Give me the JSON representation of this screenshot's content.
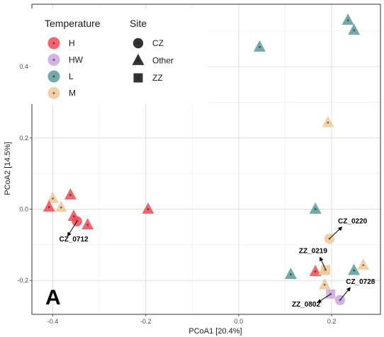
{
  "chart_data": {
    "type": "scatter",
    "panel_label": "A",
    "xlabel": "PCoA1 [20.4%]",
    "ylabel": "PCoA2 [14.5%]",
    "xlim": [
      -0.445,
      0.305
    ],
    "ylim": [
      -0.295,
      0.575
    ],
    "x_ticks": [
      -0.4,
      -0.2,
      0.0,
      0.2
    ],
    "x_tick_labels": [
      "-0.4",
      "-0.2",
      "0.0",
      "0.2"
    ],
    "y_ticks": [
      -0.2,
      0.0,
      0.2,
      0.4
    ],
    "y_tick_labels": [
      "-0.2",
      "0.0",
      "0.2",
      "0.4"
    ],
    "grid": true,
    "legend_placement": "top-left",
    "colors": {
      "H": "#f04a55",
      "HW": "#cba6df",
      "L": "#5c9a9b",
      "M": "#f0c898"
    },
    "legends": {
      "temperature": {
        "title": "Temperature",
        "entries": [
          "H",
          "HW",
          "L",
          "M"
        ]
      },
      "site": {
        "title": "Site",
        "entries": [
          "CZ",
          "Other",
          "ZZ"
        ]
      }
    },
    "points": [
      {
        "x": 0.235,
        "y": 0.53,
        "temp": "L",
        "site": "Other"
      },
      {
        "x": 0.248,
        "y": 0.502,
        "temp": "L",
        "site": "Other"
      },
      {
        "x": 0.045,
        "y": 0.455,
        "temp": "L",
        "site": "Other"
      },
      {
        "x": 0.192,
        "y": 0.243,
        "temp": "M",
        "site": "Other"
      },
      {
        "x": -0.4,
        "y": 0.03,
        "temp": "M",
        "site": "Other"
      },
      {
        "x": -0.382,
        "y": 0.005,
        "temp": "M",
        "site": "Other"
      },
      {
        "x": -0.362,
        "y": 0.04,
        "temp": "H",
        "site": "Other"
      },
      {
        "x": -0.408,
        "y": 0.006,
        "temp": "H",
        "site": "Other"
      },
      {
        "x": -0.355,
        "y": -0.02,
        "temp": "H",
        "site": "Other"
      },
      {
        "x": -0.348,
        "y": -0.034,
        "temp": "H",
        "site": "CZ"
      },
      {
        "x": -0.325,
        "y": -0.044,
        "temp": "H",
        "site": "Other"
      },
      {
        "x": -0.195,
        "y": 0.0,
        "temp": "H",
        "site": "Other"
      },
      {
        "x": 0.165,
        "y": 0.0,
        "temp": "L",
        "site": "Other"
      },
      {
        "x": 0.195,
        "y": -0.083,
        "temp": "M",
        "site": "CZ"
      },
      {
        "x": 0.112,
        "y": -0.183,
        "temp": "L",
        "site": "Other"
      },
      {
        "x": 0.165,
        "y": -0.175,
        "temp": "H",
        "site": "Other"
      },
      {
        "x": 0.183,
        "y": -0.172,
        "temp": "M",
        "site": "Other"
      },
      {
        "x": 0.187,
        "y": -0.17,
        "temp": "M",
        "site": "ZZ"
      },
      {
        "x": 0.248,
        "y": -0.172,
        "temp": "L",
        "site": "Other"
      },
      {
        "x": 0.268,
        "y": -0.157,
        "temp": "M",
        "site": "Other"
      },
      {
        "x": 0.185,
        "y": -0.212,
        "temp": "M",
        "site": "Other"
      },
      {
        "x": 0.198,
        "y": -0.238,
        "temp": "HW",
        "site": "ZZ"
      },
      {
        "x": 0.218,
        "y": -0.255,
        "temp": "HW",
        "site": "CZ"
      }
    ],
    "annotations": [
      {
        "text": "CZ_0712",
        "x": -0.355,
        "y": -0.09,
        "from": [
          -0.348,
          -0.034
        ],
        "to": [
          -0.368,
          -0.075
        ]
      },
      {
        "text": "CZ_0220",
        "x": 0.245,
        "y": -0.04,
        "from": [
          0.195,
          -0.083
        ],
        "to": [
          0.222,
          -0.05
        ]
      },
      {
        "text": "ZZ_0219",
        "x": 0.16,
        "y": -0.123,
        "from": [
          0.187,
          -0.17
        ],
        "to": [
          0.175,
          -0.135
        ]
      },
      {
        "text": "CZ_0728",
        "x": 0.262,
        "y": -0.21,
        "from": [
          0.218,
          -0.255
        ],
        "to": [
          0.24,
          -0.22
        ]
      },
      {
        "text": "ZZ_0802",
        "x": 0.145,
        "y": -0.273,
        "from": [
          0.198,
          -0.238
        ],
        "to": [
          0.17,
          -0.262
        ]
      }
    ]
  }
}
